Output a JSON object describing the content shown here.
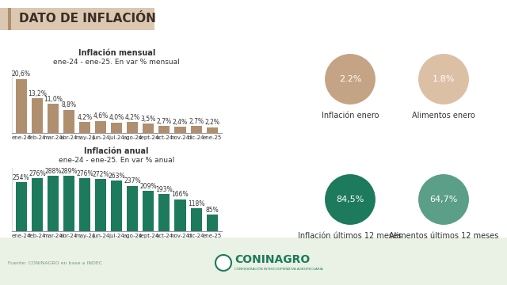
{
  "header": {
    "title": "DATO DE INFLACIÓN"
  },
  "chart_data": [
    {
      "type": "bar",
      "title": "Inflación mensual",
      "subtitle": "ene-24 - ene-25. En var % mensual",
      "categories": [
        "ene-24",
        "feb-24",
        "mar-24",
        "abr-24",
        "may-24",
        "jun-24",
        "jul-24",
        "ago-24",
        "sept-24",
        "oct-24",
        "nov-24",
        "dic-24",
        "ene-25"
      ],
      "values": [
        20.6,
        13.2,
        11.0,
        8.8,
        4.2,
        4.6,
        4.0,
        4.2,
        3.5,
        2.7,
        2.4,
        2.7,
        2.2
      ],
      "value_labels": [
        "20,6%",
        "13,2%",
        "11,0%",
        "8,8%",
        "4,2%",
        "4,6%",
        "4,0%",
        "4,2%",
        "3,5%",
        "2,7%",
        "2,4%",
        "2,7%",
        "2,2%"
      ],
      "color": "#b08f6f",
      "ylim": [
        0,
        24
      ],
      "grid": false,
      "data_labels": true,
      "tick_labels": "x"
    },
    {
      "type": "bar",
      "title": "Inflación anual",
      "subtitle": "ene-24 - ene-25. En var % anual",
      "categories": [
        "ene-24",
        "feb-24",
        "mar-24",
        "abr-24",
        "may-24",
        "jun-24",
        "jul-24",
        "ago-24",
        "sept-24",
        "oct-24",
        "nov-24",
        "dic-24",
        "ene-25"
      ],
      "values": [
        254,
        276,
        288,
        289,
        276,
        272,
        263,
        237,
        209,
        193,
        166,
        118,
        85
      ],
      "value_labels": [
        "254%",
        "276%",
        "288%",
        "289%",
        "276%",
        "272%",
        "263%",
        "237%",
        "209%",
        "193%",
        "166%",
        "118%",
        "85%"
      ],
      "color": "#1d7a5c",
      "ylim": [
        0,
        330
      ],
      "grid": false,
      "data_labels": true,
      "tick_labels": "x"
    }
  ],
  "indicators": [
    {
      "value": "2.2%",
      "label": "Inflación enero",
      "color": "#c4a485"
    },
    {
      "value": "1.8%",
      "label": "Alimentos enero",
      "color": "#dcc0a6"
    },
    {
      "value": "84,5%",
      "label": "Inflación últimos 12 meses",
      "color": "#1d7a5c"
    },
    {
      "value": "64,7%",
      "label": "Alimentos últimos 12 meses",
      "color": "#5c9f89"
    }
  ],
  "source": "Fuente: CONINAGRO en base a INDEC",
  "logo": {
    "name": "CONINAGRO",
    "subtitle": "CONFEDERACIÓN INTERCOOPERATIVA AGROPECUARIA"
  }
}
